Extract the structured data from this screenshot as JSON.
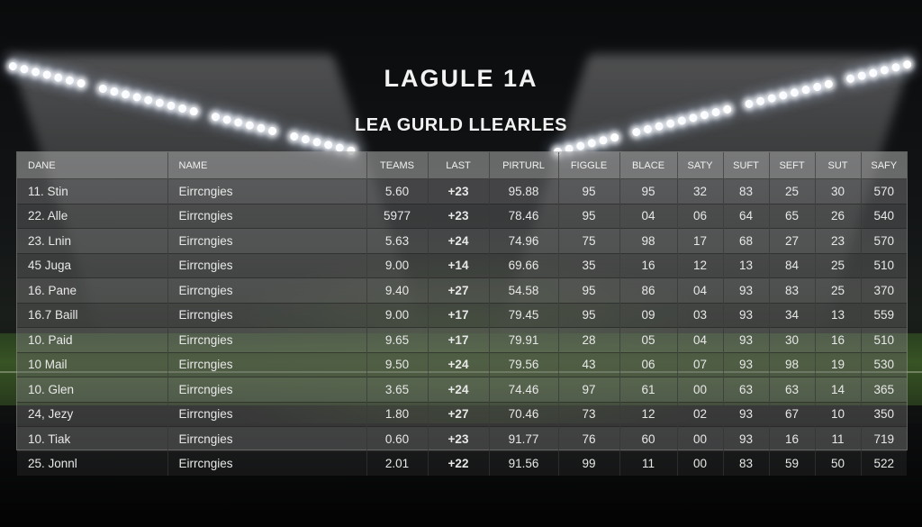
{
  "title": "LAGULE 1A",
  "subtitle": "LEA GURLD LLEARLES",
  "table": {
    "headers": [
      "DANE",
      "NAME",
      "TEAMS",
      "LAST",
      "PIRTURL",
      "FIGGLE",
      "BLACE",
      "SATY",
      "SUFT",
      "SEFT",
      "SUT",
      "SAFY"
    ],
    "rows": [
      [
        "11. Stin",
        "Eirrcngies",
        "5.60",
        "+23",
        "95.88",
        "95",
        "95",
        "32",
        "83",
        "25",
        "30",
        "570"
      ],
      [
        "22. Alle",
        "Eirrcngies",
        "5977",
        "+23",
        "78.46",
        "95",
        "04",
        "06",
        "64",
        "65",
        "26",
        "540"
      ],
      [
        "23. Lnin",
        "Eirrcngies",
        "5.63",
        "+24",
        "74.96",
        "75",
        "98",
        "17",
        "68",
        "27",
        "23",
        "570"
      ],
      [
        "45 Juga",
        "Eirrcngies",
        "9.00",
        "+14",
        "69.66",
        "35",
        "16",
        "12",
        "13",
        "84",
        "25",
        "510"
      ],
      [
        "16. Pane",
        "Eirrcngies",
        "9.40",
        "+27",
        "54.58",
        "95",
        "86",
        "04",
        "93",
        "83",
        "25",
        "370"
      ],
      [
        "16.7 Baill",
        "Eirrcngies",
        "9.00",
        "+17",
        "79.45",
        "95",
        "09",
        "03",
        "93",
        "34",
        "13",
        "559"
      ],
      [
        "10. Paid",
        "Eirrcngies",
        "9.65",
        "+17",
        "79.91",
        "28",
        "05",
        "04",
        "93",
        "30",
        "16",
        "510"
      ],
      [
        "10 Mail",
        "Eirrcngies",
        "9.50",
        "+24",
        "79.56",
        "43",
        "06",
        "07",
        "93",
        "98",
        "19",
        "530"
      ],
      [
        "10. Glen",
        "Eirrcngies",
        "3.65",
        "+24",
        "74.46",
        "97",
        "61",
        "00",
        "63",
        "63",
        "14",
        "365"
      ],
      [
        "24, Jezy",
        "Eirrcngies",
        "1.80",
        "+27",
        "70.46",
        "73",
        "12",
        "02",
        "93",
        "67",
        "10",
        "350"
      ],
      [
        "10. Tiak",
        "Eirrcngies",
        "0.60",
        "+23",
        "91.77",
        "76",
        "60",
        "00",
        "93",
        "16",
        "11",
        "719"
      ],
      [
        "25. Jonnl",
        "Eirrcngies",
        "2.01",
        "+22",
        "91.56",
        "99",
        "11",
        "00",
        "83",
        "59",
        "50",
        "522"
      ]
    ]
  }
}
